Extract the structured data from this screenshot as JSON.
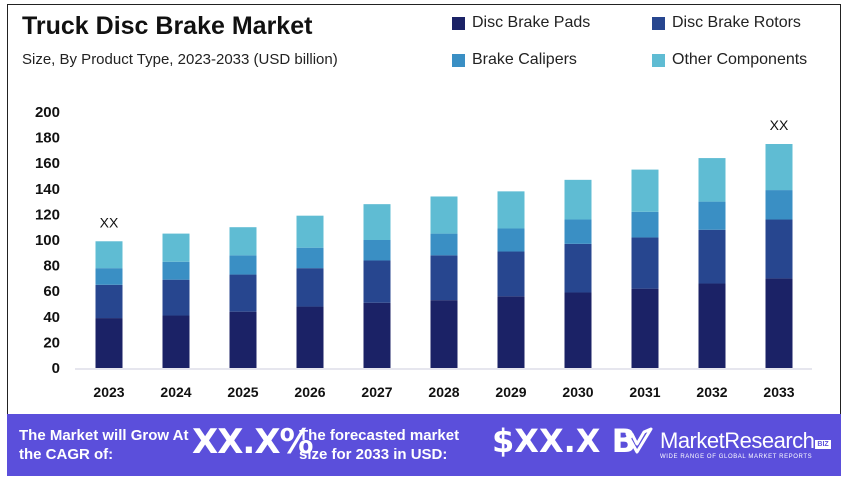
{
  "chart_data": {
    "type": "bar",
    "stacked": true,
    "title": "Truck Disc Brake Market",
    "subtitle": "Size, By Product Type, 2023-2033 (USD billion)",
    "xlabel": "",
    "ylabel": "",
    "ylim": [
      0,
      200
    ],
    "yticks": [
      0,
      20,
      40,
      60,
      80,
      100,
      120,
      140,
      160,
      180,
      200
    ],
    "categories": [
      "2023",
      "2024",
      "2025",
      "2026",
      "2027",
      "2028",
      "2029",
      "2030",
      "2031",
      "2032",
      "2033"
    ],
    "series": [
      {
        "name": "Disc Brake Pads",
        "color": "#1b2266",
        "values": [
          39,
          41,
          44,
          48,
          51,
          53,
          56,
          59,
          62,
          66,
          70
        ]
      },
      {
        "name": "Disc Brake Rotors",
        "color": "#27468f",
        "values": [
          26,
          28,
          29,
          30,
          33,
          35,
          35,
          38,
          40,
          42,
          46
        ]
      },
      {
        "name": "Brake Calipers",
        "color": "#3a8fc4",
        "values": [
          13,
          14,
          15,
          16,
          16,
          17,
          18,
          19,
          20,
          22,
          23
        ]
      },
      {
        "name": "Other Components",
        "color": "#5fbcd3",
        "values": [
          21,
          22,
          22,
          25,
          28,
          29,
          29,
          31,
          33,
          34,
          36
        ]
      }
    ],
    "annotations": [
      {
        "category": "2023",
        "text": "XX"
      },
      {
        "category": "2033",
        "text": "XX"
      }
    ],
    "legend_position": "top-right",
    "grid": false
  },
  "banner": {
    "cagr_label": "The Market will Grow At the CAGR of:",
    "cagr_value": "XX.X%",
    "forecast_label": "The forecasted market size for 2033 in USD:",
    "forecast_value": "$XX.X B",
    "brand": "MarketResearch",
    "brand_badge": "BIZ",
    "brand_tagline": "WIDE RANGE OF GLOBAL MARKET REPORTS"
  }
}
